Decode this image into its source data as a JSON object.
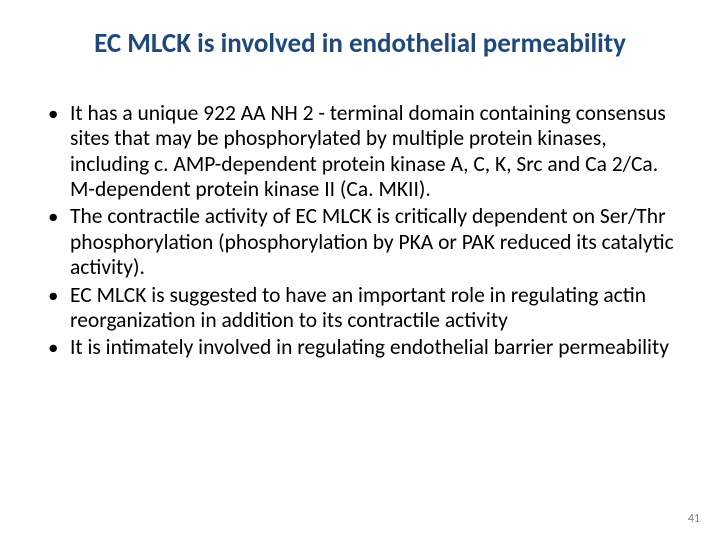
{
  "title": "EC MLCK is involved in endothelial permeability",
  "title_color": "#1f497d",
  "title_fontsize": 27,
  "body_fontsize": 21.5,
  "body_color": "#000000",
  "background_color": "#ffffff",
  "bullets": [
    "It has a unique 922 AA NH 2 - terminal domain containing consensus sites that may be phosphorylated by multiple protein kinases, including c. AMP-dependent protein kinase A, C, K, Src and Ca 2/Ca. M-dependent protein kinase II (Ca. MKII).",
    "The contractile activity of EC MLCK is critically dependent on Ser/Thr phosphorylation (phosphorylation by PKA or PAK reduced its catalytic activity).",
    "EC MLCK is suggested to have an important role in regulating actin reorganization in addition to its contractile activity",
    "It is intimately involved in regulating endothelial barrier permeability"
  ],
  "page_number": "41",
  "page_number_color": "#808080",
  "page_number_fontsize": 12
}
